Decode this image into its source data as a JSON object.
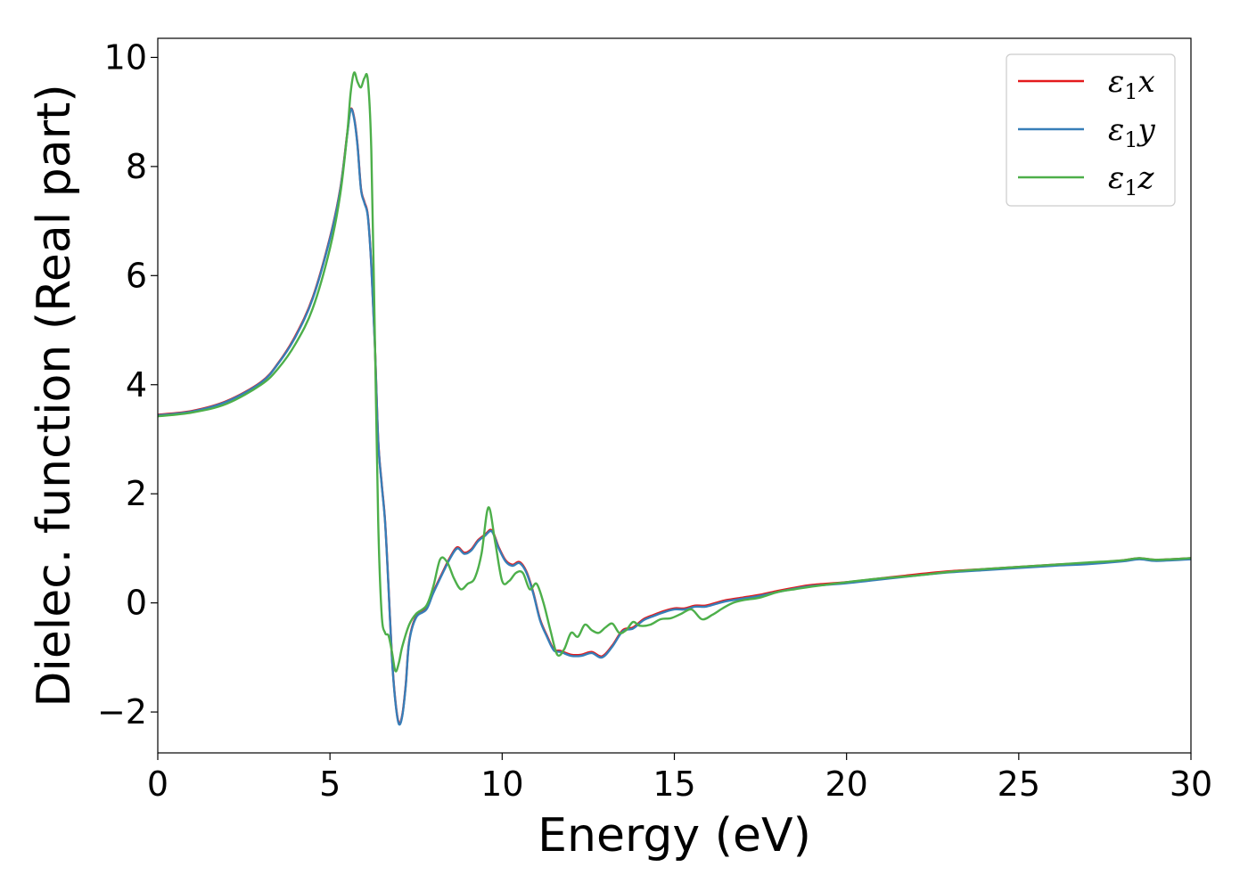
{
  "chart_data": {
    "type": "line",
    "xlabel": "Energy (eV)",
    "ylabel": "Dielec. function (Real part)",
    "xlim": [
      0,
      30
    ],
    "ylim": [
      -2.75,
      10.35
    ],
    "xticks": [
      0,
      5,
      10,
      15,
      20,
      25,
      30
    ],
    "yticks": [
      -2,
      0,
      2,
      4,
      6,
      8,
      10
    ],
    "ytick_labels": [
      "−2",
      "0",
      "2",
      "4",
      "6",
      "8",
      "10"
    ],
    "grid": false,
    "legend_position": "top-right",
    "series": [
      {
        "name": "ε1x",
        "symbol": "ε",
        "sub": "1",
        "suffix": "x",
        "color": "#e41a1c",
        "x": [
          0,
          1,
          2,
          3,
          3.5,
          4,
          4.5,
          5,
          5.3,
          5.5,
          5.6,
          5.7,
          5.8,
          5.9,
          6.0,
          6.1,
          6.2,
          6.3,
          6.4,
          6.5,
          6.6,
          6.7,
          6.8,
          6.9,
          7.0,
          7.1,
          7.2,
          7.3,
          7.5,
          7.8,
          8.0,
          8.3,
          8.5,
          8.7,
          8.9,
          9.1,
          9.3,
          9.5,
          9.7,
          9.9,
          10.1,
          10.3,
          10.5,
          10.7,
          10.9,
          11.1,
          11.3,
          11.5,
          11.7,
          12.0,
          12.3,
          12.6,
          12.9,
          13.2,
          13.5,
          13.8,
          14.1,
          14.4,
          14.7,
          15.0,
          15.3,
          15.6,
          15.9,
          16.2,
          16.5,
          17.0,
          17.5,
          18.0,
          18.5,
          19.0,
          20.0,
          21.0,
          22.0,
          23.0,
          24.0,
          25.0,
          26.0,
          27.0,
          28.0,
          28.5,
          29.0,
          30.0
        ],
        "y": [
          3.45,
          3.52,
          3.7,
          4.05,
          4.4,
          4.9,
          5.6,
          6.7,
          7.6,
          8.6,
          9.05,
          8.9,
          8.4,
          7.6,
          7.35,
          7.1,
          6.2,
          4.8,
          3.0,
          2.2,
          1.5,
          0.3,
          -1.0,
          -1.8,
          -2.2,
          -2.05,
          -1.5,
          -0.7,
          -0.25,
          -0.1,
          0.2,
          0.6,
          0.85,
          1.02,
          0.92,
          0.98,
          1.15,
          1.25,
          1.33,
          1.02,
          0.78,
          0.7,
          0.75,
          0.58,
          0.2,
          -0.3,
          -0.6,
          -0.85,
          -0.88,
          -0.95,
          -0.95,
          -0.9,
          -0.98,
          -0.78,
          -0.5,
          -0.45,
          -0.3,
          -0.22,
          -0.15,
          -0.1,
          -0.1,
          -0.05,
          -0.05,
          0.0,
          0.05,
          0.1,
          0.15,
          0.22,
          0.28,
          0.33,
          0.38,
          0.45,
          0.52,
          0.58,
          0.62,
          0.66,
          0.7,
          0.73,
          0.78,
          0.82,
          0.79,
          0.82
        ]
      },
      {
        "name": "ε1y",
        "symbol": "ε",
        "sub": "1",
        "suffix": "y",
        "color": "#377eb8",
        "x": [
          0,
          1,
          2,
          3,
          3.5,
          4,
          4.5,
          5,
          5.3,
          5.5,
          5.6,
          5.7,
          5.8,
          5.9,
          6.0,
          6.1,
          6.2,
          6.3,
          6.4,
          6.5,
          6.6,
          6.7,
          6.8,
          6.9,
          7.0,
          7.1,
          7.2,
          7.3,
          7.5,
          7.8,
          8.0,
          8.3,
          8.5,
          8.7,
          8.9,
          9.1,
          9.3,
          9.5,
          9.7,
          9.9,
          10.1,
          10.3,
          10.5,
          10.7,
          10.9,
          11.1,
          11.3,
          11.5,
          11.7,
          12.0,
          12.3,
          12.6,
          12.9,
          13.2,
          13.5,
          13.8,
          14.1,
          14.4,
          14.7,
          15.0,
          15.3,
          15.6,
          15.9,
          16.2,
          16.5,
          17.0,
          17.5,
          18.0,
          18.5,
          19.0,
          20.0,
          21.0,
          22.0,
          23.0,
          24.0,
          25.0,
          26.0,
          27.0,
          28.0,
          28.5,
          29.0,
          30.0
        ],
        "y": [
          3.44,
          3.51,
          3.69,
          4.04,
          4.39,
          4.88,
          5.58,
          6.68,
          7.58,
          8.58,
          9.04,
          8.88,
          8.38,
          7.58,
          7.33,
          7.08,
          6.18,
          4.78,
          2.98,
          2.18,
          1.48,
          0.28,
          -1.02,
          -1.82,
          -2.22,
          -2.07,
          -1.52,
          -0.72,
          -0.27,
          -0.12,
          0.18,
          0.58,
          0.83,
          1.0,
          0.9,
          0.96,
          1.13,
          1.23,
          1.31,
          1.0,
          0.76,
          0.68,
          0.73,
          0.56,
          0.18,
          -0.32,
          -0.62,
          -0.87,
          -0.9,
          -0.97,
          -0.97,
          -0.92,
          -1.0,
          -0.8,
          -0.52,
          -0.47,
          -0.32,
          -0.24,
          -0.17,
          -0.12,
          -0.12,
          -0.07,
          -0.07,
          -0.02,
          0.03,
          0.08,
          0.13,
          0.2,
          0.26,
          0.31,
          0.36,
          0.43,
          0.5,
          0.56,
          0.6,
          0.64,
          0.68,
          0.71,
          0.76,
          0.8,
          0.77,
          0.8
        ]
      },
      {
        "name": "ε1z",
        "symbol": "ε",
        "sub": "1",
        "suffix": "z",
        "color": "#4daf4a",
        "x": [
          0,
          1,
          2,
          3,
          3.5,
          4,
          4.5,
          5,
          5.3,
          5.5,
          5.6,
          5.7,
          5.8,
          5.9,
          6.0,
          6.1,
          6.2,
          6.3,
          6.4,
          6.5,
          6.6,
          6.7,
          6.8,
          6.9,
          7.0,
          7.1,
          7.3,
          7.5,
          7.8,
          8.0,
          8.2,
          8.4,
          8.6,
          8.8,
          9.0,
          9.2,
          9.4,
          9.6,
          9.8,
          10.0,
          10.2,
          10.4,
          10.6,
          10.8,
          11.0,
          11.2,
          11.4,
          11.6,
          11.8,
          12.0,
          12.2,
          12.4,
          12.6,
          12.8,
          13.0,
          13.2,
          13.4,
          13.6,
          13.8,
          14.0,
          14.3,
          14.6,
          14.9,
          15.2,
          15.5,
          15.8,
          16.1,
          16.4,
          16.7,
          17.0,
          17.5,
          18.0,
          18.5,
          19.0,
          20.0,
          21.0,
          22.0,
          23.0,
          24.0,
          25.0,
          26.0,
          27.0,
          28.0,
          28.5,
          29.0,
          30.0
        ],
        "y": [
          3.42,
          3.49,
          3.65,
          4.0,
          4.3,
          4.75,
          5.4,
          6.5,
          7.5,
          8.6,
          9.35,
          9.72,
          9.55,
          9.45,
          9.62,
          9.58,
          8.3,
          5.0,
          1.5,
          -0.2,
          -0.55,
          -0.6,
          -0.9,
          -1.25,
          -1.1,
          -0.8,
          -0.4,
          -0.2,
          -0.05,
          0.3,
          0.8,
          0.75,
          0.45,
          0.25,
          0.35,
          0.45,
          0.9,
          1.75,
          1.1,
          0.4,
          0.4,
          0.55,
          0.55,
          0.25,
          0.35,
          0.0,
          -0.5,
          -0.95,
          -0.85,
          -0.55,
          -0.62,
          -0.4,
          -0.5,
          -0.55,
          -0.45,
          -0.38,
          -0.55,
          -0.5,
          -0.35,
          -0.42,
          -0.4,
          -0.3,
          -0.28,
          -0.2,
          -0.12,
          -0.3,
          -0.22,
          -0.1,
          0.0,
          0.05,
          0.1,
          0.2,
          0.25,
          0.3,
          0.38,
          0.45,
          0.5,
          0.57,
          0.62,
          0.66,
          0.7,
          0.74,
          0.78,
          0.82,
          0.79,
          0.82
        ]
      }
    ]
  }
}
